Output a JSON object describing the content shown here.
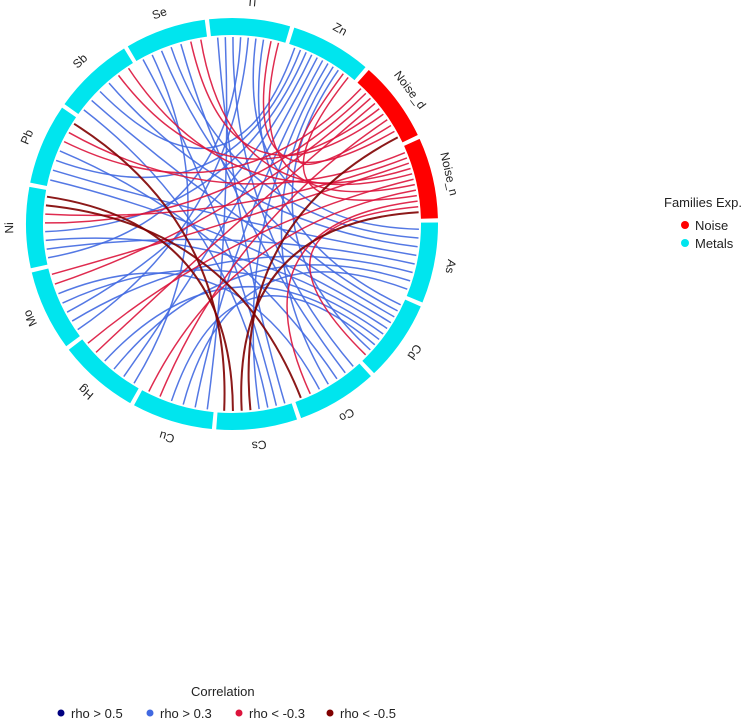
{
  "chart_data": {
    "type": "chord",
    "sectors": [
      {
        "name": "Ti",
        "family": "Metals"
      },
      {
        "name": "Zn",
        "family": "Metals"
      },
      {
        "name": "Noise_d",
        "family": "Noise"
      },
      {
        "name": "Noise_n",
        "family": "Noise"
      },
      {
        "name": "As",
        "family": "Metals"
      },
      {
        "name": "Cd",
        "family": "Metals"
      },
      {
        "name": "Co",
        "family": "Metals"
      },
      {
        "name": "Cs",
        "family": "Metals"
      },
      {
        "name": "Cu",
        "family": "Metals"
      },
      {
        "name": "Hg",
        "family": "Metals"
      },
      {
        "name": "Mo",
        "family": "Metals"
      },
      {
        "name": "Ni",
        "family": "Metals"
      },
      {
        "name": "Pb",
        "family": "Metals"
      },
      {
        "name": "Sb",
        "family": "Metals"
      },
      {
        "name": "Se",
        "family": "Metals"
      }
    ],
    "families_legend": {
      "title": "Families Exp.",
      "items": [
        {
          "label": "Noise",
          "color": "#ff0000"
        },
        {
          "label": "Metals",
          "color": "#00e5ee"
        }
      ]
    },
    "correlation_legend": {
      "title": "Correlation",
      "items": [
        {
          "label": "rho > 0.5",
          "color": "#000080"
        },
        {
          "label": "rho > 0.3",
          "color": "#4169e1"
        },
        {
          "label": "rho < -0.3",
          "color": "#dc143c"
        },
        {
          "label": "rho < -0.5",
          "color": "#800000"
        }
      ]
    },
    "links": [
      {
        "from": "Ti",
        "to": "Cs",
        "class": "rho > 0.3"
      },
      {
        "from": "Ti",
        "to": "Cu",
        "class": "rho > 0.3"
      },
      {
        "from": "Ti",
        "to": "Co",
        "class": "rho > 0.3"
      },
      {
        "from": "Ti",
        "to": "Ni",
        "class": "rho > 0.3"
      },
      {
        "from": "Ti",
        "to": "Mo",
        "class": "rho > 0.3"
      },
      {
        "from": "Ti",
        "to": "As",
        "class": "rho > 0.3"
      },
      {
        "from": "Ti",
        "to": "Cd",
        "class": "rho > 0.3"
      },
      {
        "from": "Se",
        "to": "Cs",
        "class": "rho > 0.3"
      },
      {
        "from": "Se",
        "to": "Hg",
        "class": "rho > 0.3"
      },
      {
        "from": "Se",
        "to": "Cd",
        "class": "rho > 0.3"
      },
      {
        "from": "Se",
        "to": "As",
        "class": "rho > 0.3"
      },
      {
        "from": "Se",
        "to": "Co",
        "class": "rho > 0.3"
      },
      {
        "from": "Sb",
        "to": "Cs",
        "class": "rho > 0.3"
      },
      {
        "from": "Sb",
        "to": "Cd",
        "class": "rho > 0.3"
      },
      {
        "from": "Sb",
        "to": "Zn",
        "class": "rho > 0.3"
      },
      {
        "from": "Sb",
        "to": "As",
        "class": "rho > 0.3"
      },
      {
        "from": "Pb",
        "to": "Cd",
        "class": "rho > 0.3"
      },
      {
        "from": "Pb",
        "to": "As",
        "class": "rho > 0.3"
      },
      {
        "from": "Pb",
        "to": "Zn",
        "class": "rho > 0.3"
      },
      {
        "from": "Pb",
        "to": "Co",
        "class": "rho > 0.3"
      },
      {
        "from": "Ni",
        "to": "As",
        "class": "rho > 0.3"
      },
      {
        "from": "Ni",
        "to": "Cd",
        "class": "rho > 0.3"
      },
      {
        "from": "Ni",
        "to": "Zn",
        "class": "rho > 0.3"
      },
      {
        "from": "Mo",
        "to": "As",
        "class": "rho > 0.3"
      },
      {
        "from": "Mo",
        "to": "Zn",
        "class": "rho > 0.3"
      },
      {
        "from": "Mo",
        "to": "Cd",
        "class": "rho > 0.3"
      },
      {
        "from": "Hg",
        "to": "Zn",
        "class": "rho > 0.3"
      },
      {
        "from": "Hg",
        "to": "As",
        "class": "rho > 0.3"
      },
      {
        "from": "Hg",
        "to": "Cd",
        "class": "rho > 0.3"
      },
      {
        "from": "Cu",
        "to": "Zn",
        "class": "rho > 0.3"
      },
      {
        "from": "Cu",
        "to": "As",
        "class": "rho > 0.3"
      },
      {
        "from": "Cu",
        "to": "Cd",
        "class": "rho > 0.3"
      },
      {
        "from": "Cs",
        "to": "Zn",
        "class": "rho > 0.3"
      },
      {
        "from": "Co",
        "to": "Zn",
        "class": "rho > 0.3"
      },
      {
        "from": "Co",
        "to": "Mo",
        "class": "rho > 0.3"
      },
      {
        "from": "Cd",
        "to": "Zn",
        "class": "rho > 0.3"
      },
      {
        "from": "Noise_d",
        "to": "Pb",
        "class": "rho < -0.3"
      },
      {
        "from": "Noise_d",
        "to": "Ni",
        "class": "rho < -0.3"
      },
      {
        "from": "Noise_d",
        "to": "Mo",
        "class": "rho < -0.3"
      },
      {
        "from": "Noise_d",
        "to": "Hg",
        "class": "rho < -0.3"
      },
      {
        "from": "Noise_d",
        "to": "Sb",
        "class": "rho < -0.3"
      },
      {
        "from": "Noise_d",
        "to": "Se",
        "class": "rho < -0.3"
      },
      {
        "from": "Noise_d",
        "to": "Cu",
        "class": "rho < -0.3"
      },
      {
        "from": "Noise_d",
        "to": "Zn",
        "class": "rho < -0.3"
      },
      {
        "from": "Noise_d",
        "to": "Ti",
        "class": "rho < -0.3"
      },
      {
        "from": "Noise_n",
        "to": "Pb",
        "class": "rho < -0.3"
      },
      {
        "from": "Noise_n",
        "to": "Ni",
        "class": "rho < -0.3"
      },
      {
        "from": "Noise_n",
        "to": "Mo",
        "class": "rho < -0.3"
      },
      {
        "from": "Noise_n",
        "to": "Sb",
        "class": "rho < -0.3"
      },
      {
        "from": "Noise_n",
        "to": "Se",
        "class": "rho < -0.3"
      },
      {
        "from": "Noise_n",
        "to": "Hg",
        "class": "rho < -0.3"
      },
      {
        "from": "Noise_n",
        "to": "Ti",
        "class": "rho < -0.3"
      },
      {
        "from": "Noise_n",
        "to": "Cu",
        "class": "rho < -0.3"
      },
      {
        "from": "Noise_n",
        "to": "Zn",
        "class": "rho < -0.3"
      },
      {
        "from": "Noise_n",
        "to": "Co",
        "class": "rho < -0.3"
      },
      {
        "from": "Noise_n",
        "to": "Cd",
        "class": "rho < -0.3"
      },
      {
        "from": "Noise_d",
        "to": "Cs",
        "class": "rho < -0.5"
      },
      {
        "from": "Noise_n",
        "to": "Cs",
        "class": "rho < -0.5"
      },
      {
        "from": "Ni",
        "to": "Co",
        "class": "rho < -0.5"
      },
      {
        "from": "Ni",
        "to": "Cs",
        "class": "rho < -0.5"
      },
      {
        "from": "Pb",
        "to": "Cs",
        "class": "rho < -0.5"
      }
    ]
  }
}
